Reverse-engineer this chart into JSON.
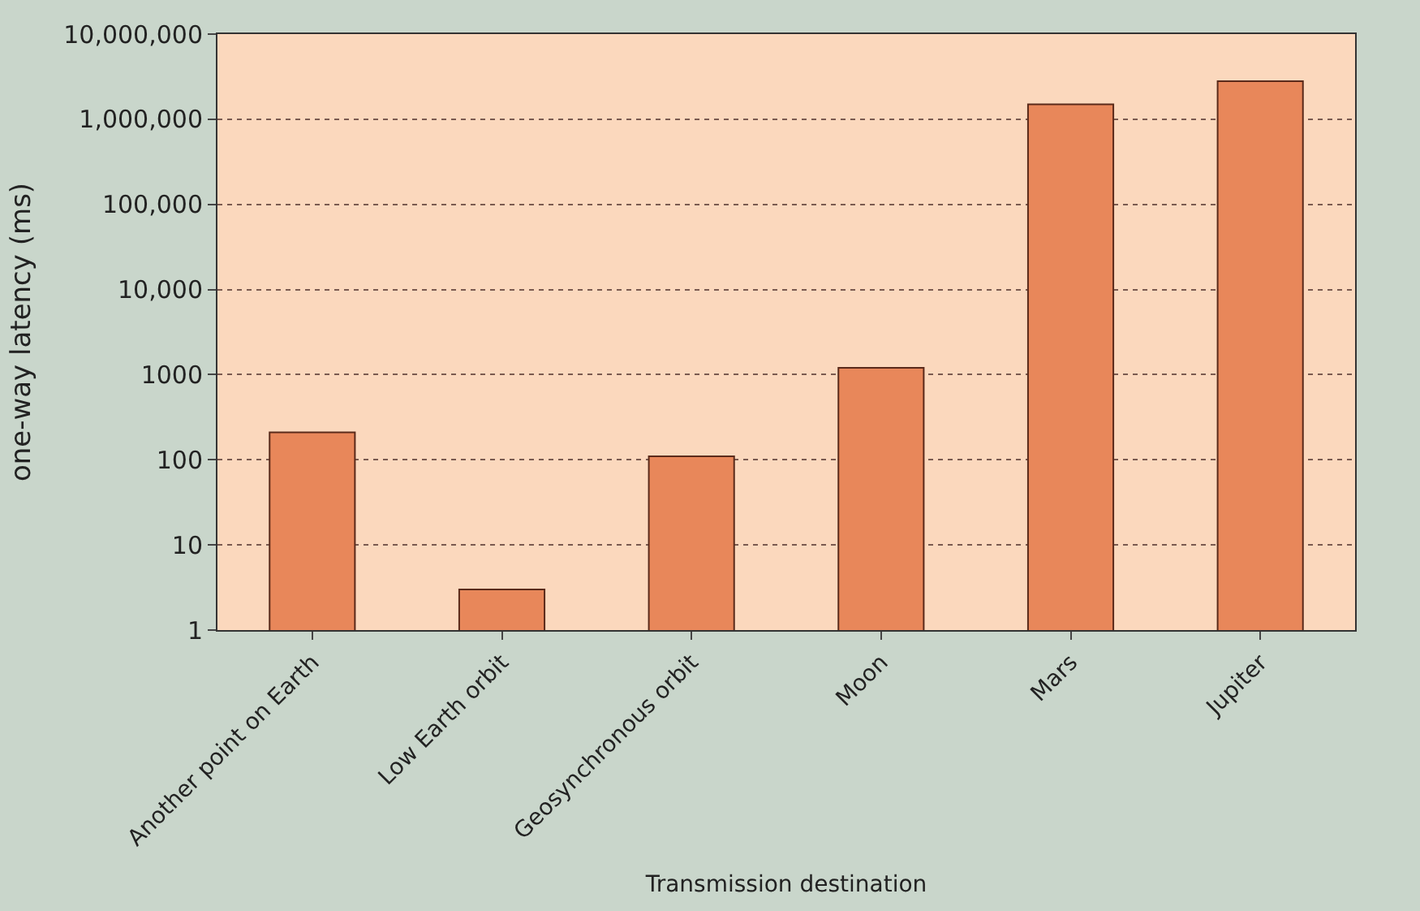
{
  "chart_data": {
    "type": "bar",
    "xlabel": "Transmission destination",
    "ylabel": "one-way latency (ms)",
    "categories": [
      "Another point on Earth",
      "Low Earth orbit",
      "Geosynchronous orbit",
      "Moon",
      "Mars",
      "Jupiter"
    ],
    "values": [
      210,
      3,
      110,
      1200,
      1500000,
      2800000
    ],
    "color": "#e8875a",
    "log": true,
    "ylim": [
      1,
      10000000
    ],
    "yticks": [
      1,
      10,
      100,
      1000,
      {
        "value": 10000,
        "label": "10,000"
      },
      {
        "value": 100000,
        "label": "100,000"
      },
      {
        "value": 1000000,
        "label": "1,000,000"
      },
      {
        "value": 10000000,
        "label": "10,000,000"
      }
    ],
    "grid": "y"
  }
}
